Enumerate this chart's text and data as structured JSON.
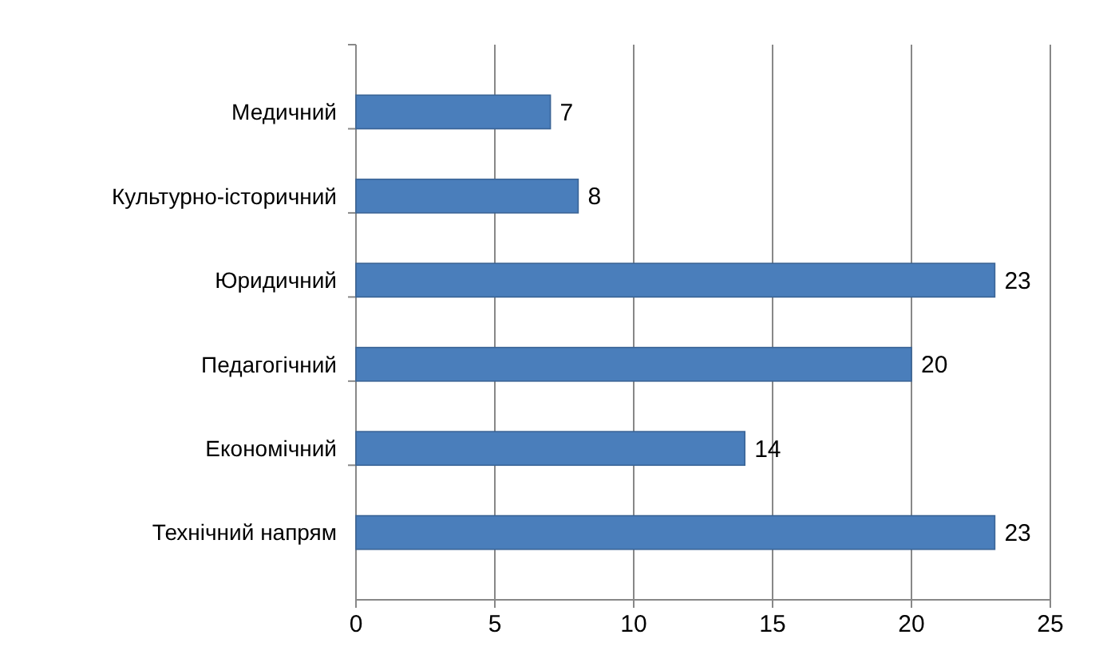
{
  "chart_data": {
    "type": "bar",
    "orientation": "horizontal",
    "categories": [
      "Медичний",
      "Культурно-історичний",
      "Юридичний",
      "Педагогічний",
      "Економічний",
      "Технічний напрям"
    ],
    "values": [
      7,
      8,
      23,
      20,
      14,
      23
    ],
    "color": "#4a7ebb",
    "xlim": [
      0,
      25
    ],
    "xticks": [
      0,
      5,
      10,
      15,
      20,
      25
    ],
    "grid": "x",
    "data_labels": true
  }
}
